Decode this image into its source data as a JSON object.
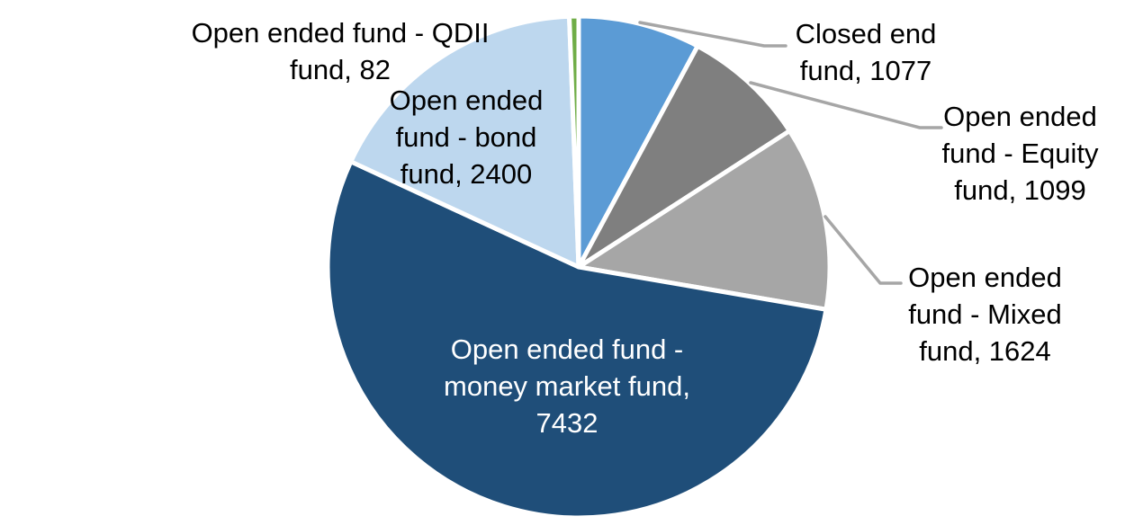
{
  "chart_data": {
    "type": "pie",
    "title": "",
    "legend": "none",
    "background_color": "#FFFFFF",
    "slice_border_color": "#FFFFFF",
    "leader_line_color": "#A6A6A6",
    "label_style": "category name and value, outside with leader lines; largest slice labeled inside in white",
    "start_angle_deg": 0,
    "direction": "clockwise",
    "slices": [
      {
        "id": "closed_end",
        "name": "Closed end fund",
        "value": 1077,
        "color": "#5B9BD5",
        "label_lines": [
          "Closed end",
          "fund, 1077"
        ],
        "label_text_color": "#000000"
      },
      {
        "id": "equity",
        "name": "Open ended fund - Equity fund",
        "value": 1099,
        "color": "#7F7F7F",
        "label_lines": [
          "Open ended",
          "fund - Equity",
          "fund, 1099"
        ],
        "label_text_color": "#000000"
      },
      {
        "id": "mixed",
        "name": "Open ended fund - Mixed fund",
        "value": 1624,
        "color": "#A6A6A6",
        "label_lines": [
          "Open ended",
          "fund - Mixed",
          "fund, 1624"
        ],
        "label_text_color": "#000000"
      },
      {
        "id": "money_market",
        "name": "Open ended fund - money market fund",
        "value": 7432,
        "color": "#1F4E79",
        "label_lines": [
          "Open ended fund -",
          "money market fund,",
          "7432"
        ],
        "label_text_color": "#FFFFFF"
      },
      {
        "id": "bond",
        "name": "Open ended fund - bond fund",
        "value": 2400,
        "color": "#BDD7EE",
        "label_lines": [
          "Open ended",
          "fund - bond",
          "fund, 2400"
        ],
        "label_text_color": "#000000"
      },
      {
        "id": "qdii",
        "name": "Open ended fund - QDII fund",
        "value": 82,
        "color": "#70AD47",
        "label_lines": [
          "Open ended fund - QDII",
          "fund, 82"
        ],
        "label_text_color": "#000000"
      }
    ]
  }
}
